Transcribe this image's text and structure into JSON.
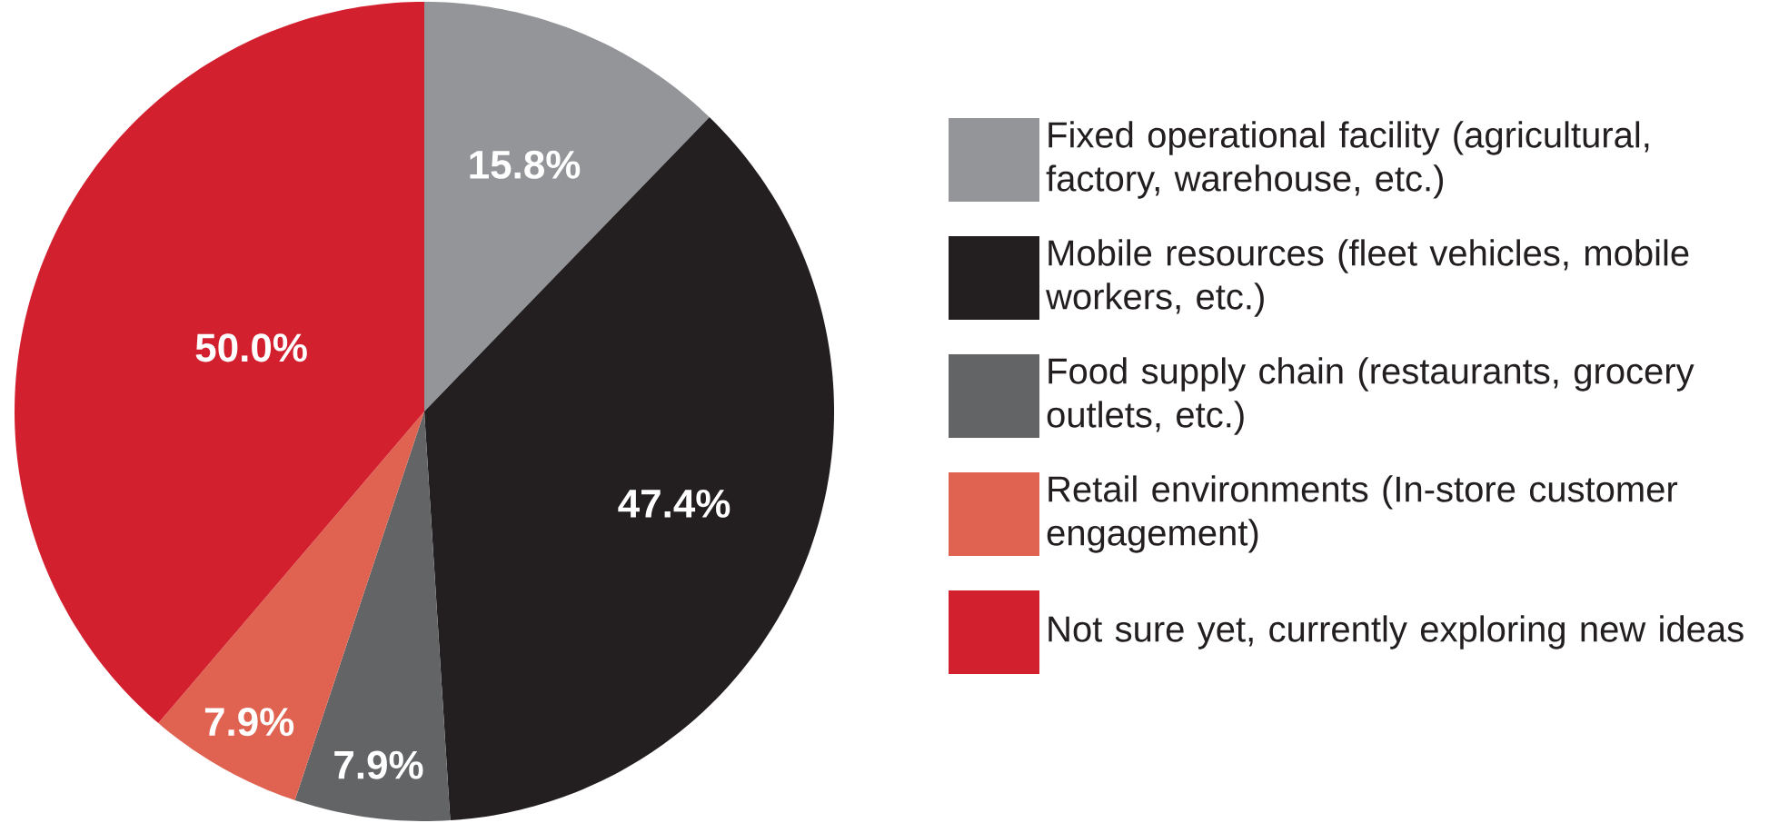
{
  "chart_data": {
    "type": "pie",
    "categories": [
      "Fixed operational facility (agricultural, factory, warehouse, etc.)",
      "Mobile resources (fleet vehicles, mobile workers, etc.)",
      "Food supply chain (restaurants, grocery outlets, etc.)",
      "Retail environments (In-store customer engagement)",
      "Not sure yet, currently exploring new ideas"
    ],
    "values": [
      15.8,
      47.4,
      7.9,
      7.9,
      50.0
    ],
    "value_labels": [
      "15.8%",
      "47.4%",
      "7.9%",
      "7.9%",
      "50.0%"
    ],
    "colors": [
      "#939598",
      "#231f20",
      "#636466",
      "#e06352",
      "#d2202f"
    ],
    "legend": "right"
  }
}
